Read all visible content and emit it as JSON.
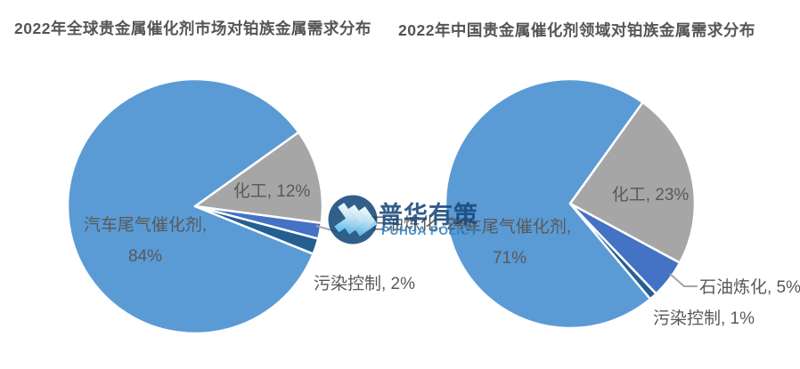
{
  "chart_data": [
    {
      "type": "pie",
      "title": "2022年全球贵金属催化剂市场对铂族金属需求分布",
      "categories": [
        "汽车尾气催化剂",
        "化工",
        "石油炼化",
        "污染控制"
      ],
      "values": [
        84,
        12,
        2,
        2
      ],
      "colors": [
        "#5B9BD5",
        "#A6A6A6",
        "#4472C4",
        "#255E91"
      ],
      "labels": {
        "main_line1": "汽车尾气催化剂,",
        "main_line2": "84%",
        "chem": "化工, 12%",
        "petro": "石油炼化, 2%",
        "pollution": "污染控制, 2%"
      },
      "layout": {
        "start_angle": 112,
        "legend": "none",
        "label_position": "inside-large-outside-small",
        "slice_border": "#FFFFFF"
      }
    },
    {
      "type": "pie",
      "title": "2022年中国贵金属催化剂领域对铂族金属需求分布",
      "categories": [
        "汽车尾气催化剂",
        "化工",
        "石油炼化",
        "污染控制"
      ],
      "values": [
        71,
        23,
        5,
        1
      ],
      "colors": [
        "#5B9BD5",
        "#A6A6A6",
        "#4472C4",
        "#255E91"
      ],
      "labels": {
        "main_line1": "汽车尾气催化剂,",
        "main_line2": "71%",
        "chem": "化工, 23%",
        "petro": "石油炼化, 5%",
        "pollution": "污染控制, 1%"
      },
      "layout": {
        "start_angle": 140,
        "legend": "none",
        "label_position": "inside-large-outside-small",
        "slice_border": "#FFFFFF"
      }
    }
  ],
  "watermark": {
    "brand_cn": "普华有策",
    "brand_en": "PUHUA POLICY",
    "colors": {
      "circle": "#14497B",
      "cn_text": "#17477A",
      "en_text": "#2E82C4",
      "chevron_light": "#EAF6FC",
      "chevron_blue": "#54B6E8"
    }
  },
  "style": {
    "label_text": "#595959",
    "leader_line": "#A6A6A6",
    "background": "#FFFFFF"
  }
}
